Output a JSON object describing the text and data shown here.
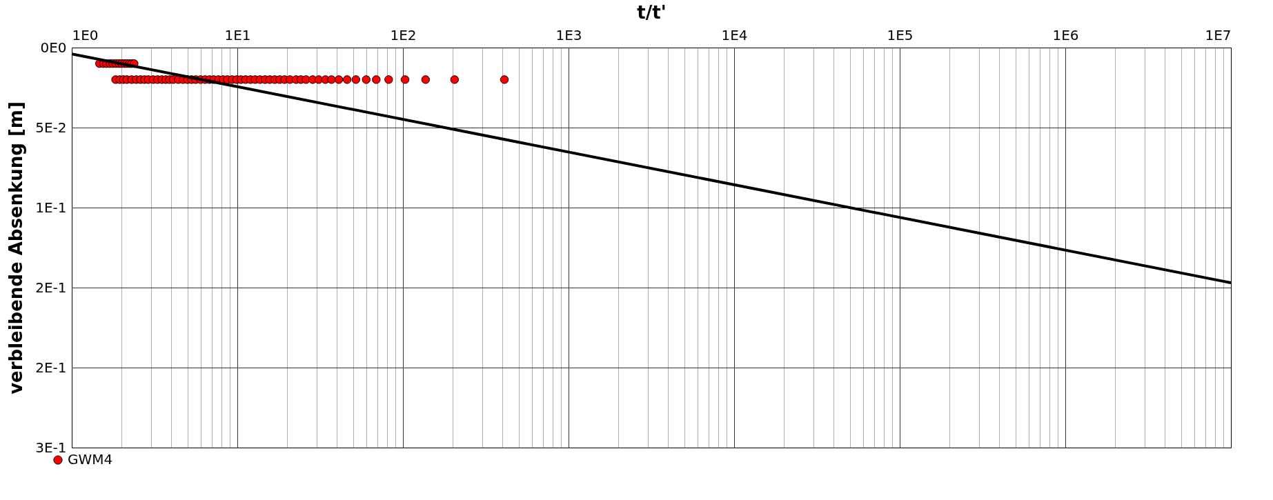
{
  "chart_data": {
    "type": "scatter",
    "xlabel": "t/t'",
    "ylabel": "verbleibende Absenkung [m]",
    "log": "x",
    "grid": true,
    "legend": "bottom left",
    "xlim": [
      1,
      10000000
    ],
    "ylim": [
      0.25,
      0
    ],
    "xticks": [
      {
        "value": 1,
        "label": "1E0"
      },
      {
        "value": 2,
        "label": null
      },
      {
        "value": 3,
        "label": null
      },
      {
        "value": 4,
        "label": null
      },
      {
        "value": 5,
        "label": null
      },
      {
        "value": 6,
        "label": null
      },
      {
        "value": 7,
        "label": null
      },
      {
        "value": 8,
        "label": null
      },
      {
        "value": 9,
        "label": null
      },
      {
        "value": 10,
        "label": "1E1"
      },
      {
        "value": 20,
        "label": null
      },
      {
        "value": 30,
        "label": null
      },
      {
        "value": 40,
        "label": null
      },
      {
        "value": 50,
        "label": null
      },
      {
        "value": 60,
        "label": null
      },
      {
        "value": 70,
        "label": null
      },
      {
        "value": 80,
        "label": null
      },
      {
        "value": 90,
        "label": null
      },
      {
        "value": 100,
        "label": "1E2"
      },
      {
        "value": 200,
        "label": null
      },
      {
        "value": 300,
        "label": null
      },
      {
        "value": 400,
        "label": null
      },
      {
        "value": 500,
        "label": null
      },
      {
        "value": 600,
        "label": null
      },
      {
        "value": 700,
        "label": null
      },
      {
        "value": 800,
        "label": null
      },
      {
        "value": 900,
        "label": null
      },
      {
        "value": 1000,
        "label": "1E3"
      },
      {
        "value": 2000,
        "label": null
      },
      {
        "value": 3000,
        "label": null
      },
      {
        "value": 4000,
        "label": null
      },
      {
        "value": 5000,
        "label": null
      },
      {
        "value": 6000,
        "label": null
      },
      {
        "value": 7000,
        "label": null
      },
      {
        "value": 8000,
        "label": null
      },
      {
        "value": 9000,
        "label": null
      },
      {
        "value": 10000,
        "label": "1E4"
      },
      {
        "value": 20000,
        "label": null
      },
      {
        "value": 30000,
        "label": null
      },
      {
        "value": 40000,
        "label": null
      },
      {
        "value": 50000,
        "label": null
      },
      {
        "value": 60000,
        "label": null
      },
      {
        "value": 70000,
        "label": null
      },
      {
        "value": 80000,
        "label": null
      },
      {
        "value": 90000,
        "label": null
      },
      {
        "value": 100000,
        "label": "1E5"
      },
      {
        "value": 200000,
        "label": null
      },
      {
        "value": 300000,
        "label": null
      },
      {
        "value": 400000,
        "label": null
      },
      {
        "value": 500000,
        "label": null
      },
      {
        "value": 600000,
        "label": null
      },
      {
        "value": 700000,
        "label": null
      },
      {
        "value": 800000,
        "label": null
      },
      {
        "value": 900000,
        "label": null
      },
      {
        "value": 1000000,
        "label": "1E6"
      },
      {
        "value": 2000000,
        "label": null
      },
      {
        "value": 3000000,
        "label": null
      },
      {
        "value": 4000000,
        "label": null
      },
      {
        "value": 5000000,
        "label": null
      },
      {
        "value": 6000000,
        "label": null
      },
      {
        "value": 7000000,
        "label": null
      },
      {
        "value": 8000000,
        "label": null
      },
      {
        "value": 9000000,
        "label": null
      },
      {
        "value": 10000000,
        "label": "1E7"
      }
    ],
    "yticks": [
      {
        "value": 0,
        "label": "0E0"
      },
      {
        "value": 0.05,
        "label": "5E-2"
      },
      {
        "value": 0.1,
        "label": "1E-1"
      },
      {
        "value": 0.15,
        "label": "2E-1"
      },
      {
        "value": 0.2,
        "label": "2E-1"
      },
      {
        "value": 0.25,
        "label": "3E-1"
      }
    ],
    "series": [
      {
        "name": "GWM4",
        "color": "#ff0000",
        "marker": "circle",
        "x": [
          1.47,
          1.55,
          1.62,
          1.7,
          1.77,
          1.85,
          1.93,
          2.0,
          2.08,
          2.15,
          2.23,
          2.3,
          2.38,
          1.84,
          1.95,
          2.05,
          2.15,
          2.3,
          2.45,
          2.6,
          2.75,
          2.9,
          3.1,
          3.3,
          3.5,
          3.7,
          3.9,
          4.1,
          4.4,
          4.7,
          5,
          5.3,
          5.6,
          6,
          6.4,
          6.8,
          7.2,
          7.7,
          8.2,
          8.7,
          9.3,
          9.9,
          10.5,
          11.2,
          12,
          12.8,
          13.7,
          14.7,
          15.7,
          16.8,
          18,
          19.3,
          20.8,
          22.6,
          24.2,
          26,
          28.5,
          31,
          34,
          37,
          41,
          46,
          52,
          60,
          69,
          82,
          103,
          137,
          205,
          410
        ],
        "values": [
          0.01,
          0.01,
          0.01,
          0.01,
          0.01,
          0.01,
          0.01,
          0.01,
          0.01,
          0.01,
          0.01,
          0.01,
          0.01,
          0.02,
          0.02,
          0.02,
          0.02,
          0.02,
          0.02,
          0.02,
          0.02,
          0.02,
          0.02,
          0.02,
          0.02,
          0.02,
          0.02,
          0.02,
          0.02,
          0.02,
          0.02,
          0.02,
          0.02,
          0.02,
          0.02,
          0.02,
          0.02,
          0.02,
          0.02,
          0.02,
          0.02,
          0.02,
          0.02,
          0.02,
          0.02,
          0.02,
          0.02,
          0.02,
          0.02,
          0.02,
          0.02,
          0.02,
          0.02,
          0.02,
          0.02,
          0.02,
          0.02,
          0.02,
          0.02,
          0.02,
          0.02,
          0.02,
          0.02,
          0.02,
          0.02,
          0.02,
          0.02,
          0.02,
          0.02,
          0.02
        ]
      },
      {
        "type": "line",
        "color": "#000000",
        "marker": "none",
        "x": [
          1,
          10000000
        ],
        "values": [
          0.004,
          0.147
        ]
      }
    ]
  }
}
